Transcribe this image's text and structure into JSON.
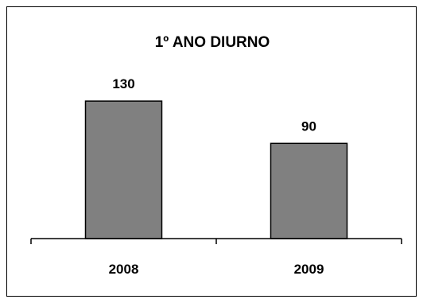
{
  "chart_data": {
    "type": "bar",
    "title": "1º ANO DIURNO",
    "categories": [
      "2008",
      "2009"
    ],
    "values": [
      130,
      90
    ],
    "xlabel": "",
    "ylabel": "",
    "ylim": [
      0,
      160
    ],
    "grid": false,
    "legend": "none",
    "data_labels": true,
    "colors": {
      "bar": "#808080",
      "bar_edge": "#000000",
      "axis": "#000000"
    }
  }
}
